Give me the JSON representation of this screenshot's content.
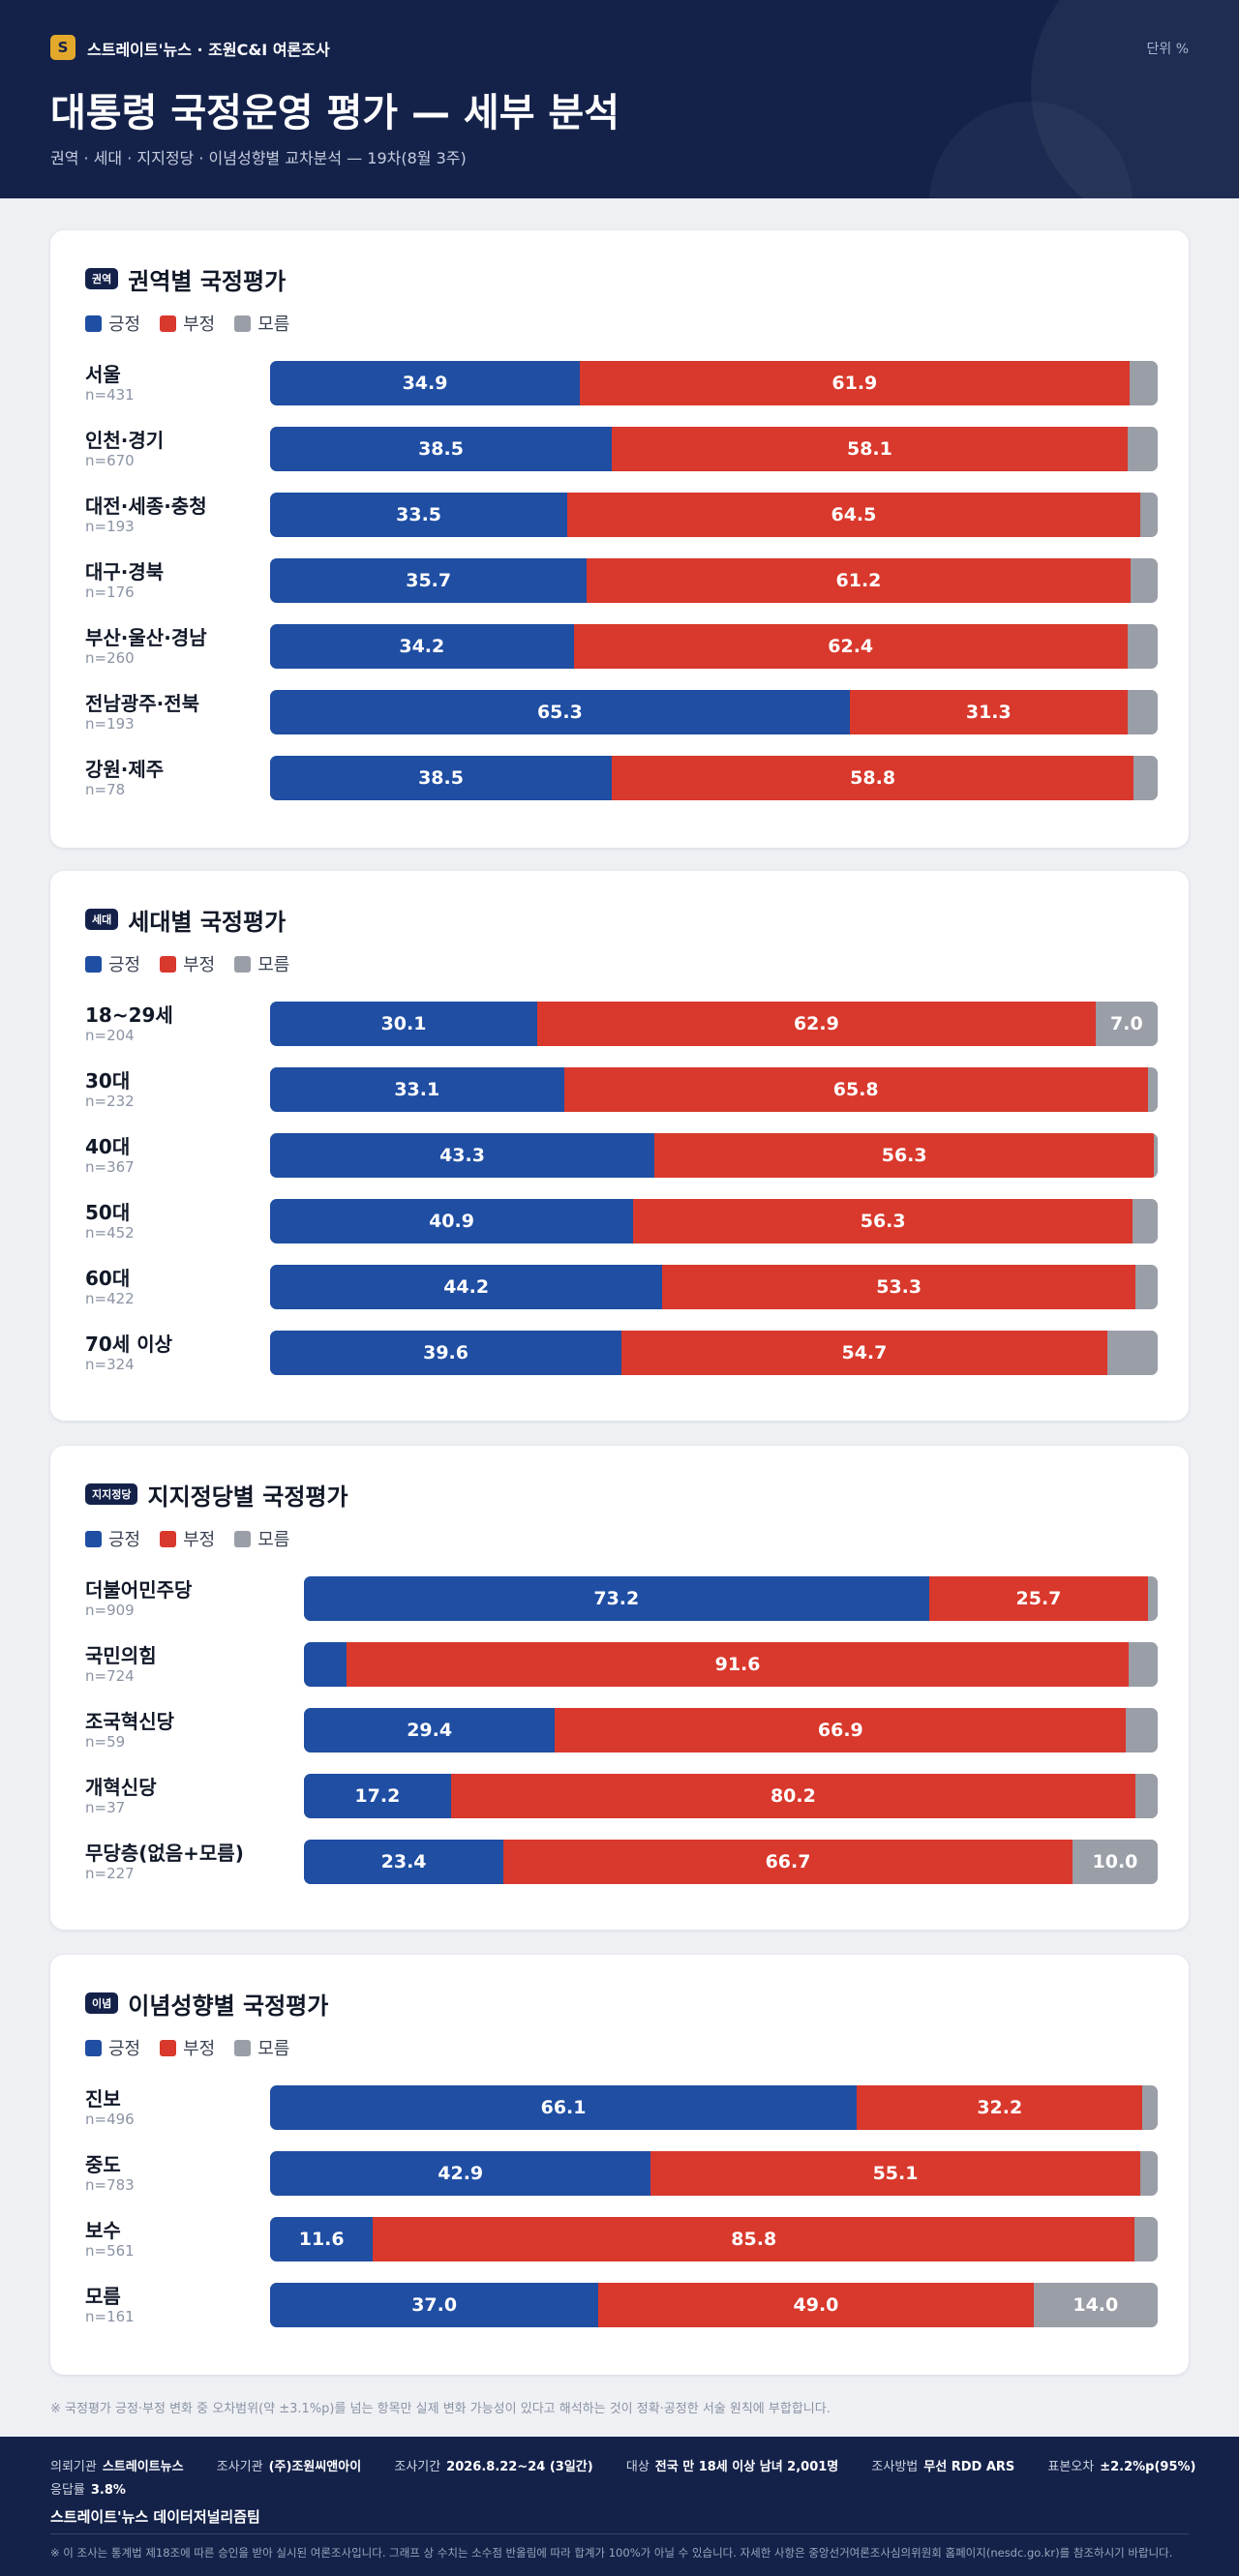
{
  "header": {
    "logo_letter": "S",
    "brand": "스트레이트'뉴스 · 조원C&I 여론조사",
    "unit": "단위 %",
    "title": "대통령 국정운영 평가 — 세부 분석",
    "subtitle": "권역 · 세대 · 지지정당 · 이념성향별 교차분석 — 19차(8월 3주)"
  },
  "legend": {
    "positive": "긍정",
    "negative": "부정",
    "unknown": "모름"
  },
  "colors": {
    "positive": "#1f4ea3",
    "negative": "#d9382c",
    "unknown": "#9a9ea7",
    "navy": "#14224a"
  },
  "chart_data": [
    {
      "type": "bar",
      "orientation": "horizontal-stacked",
      "tag": "권역",
      "title": "권역별 국정평가",
      "categories": [
        "서울",
        "인천·경기",
        "대전·세종·충청",
        "대구·경북",
        "부산·울산·경남",
        "전남광주·전북",
        "강원·제주"
      ],
      "n": [
        "n=431",
        "n=670",
        "n=193",
        "n=176",
        "n=260",
        "n=193",
        "n=78"
      ],
      "series": [
        {
          "name": "긍정",
          "values": [
            34.9,
            38.5,
            33.5,
            35.7,
            34.2,
            65.3,
            38.5
          ]
        },
        {
          "name": "부정",
          "values": [
            61.9,
            58.1,
            64.5,
            61.2,
            62.4,
            31.3,
            58.8
          ]
        },
        {
          "name": "모름",
          "values": [
            3.2,
            3.4,
            2.0,
            3.1,
            3.4,
            3.4,
            2.7
          ]
        }
      ],
      "labeled": [
        [
          true,
          true,
          false
        ],
        [
          true,
          true,
          false
        ],
        [
          true,
          true,
          false
        ],
        [
          true,
          true,
          false
        ],
        [
          true,
          true,
          false
        ],
        [
          true,
          true,
          false
        ],
        [
          true,
          true,
          false
        ]
      ],
      "xlim": [
        0,
        100
      ]
    },
    {
      "type": "bar",
      "orientation": "horizontal-stacked",
      "tag": "세대",
      "title": "세대별 국정평가",
      "categories": [
        "18~29세",
        "30대",
        "40대",
        "50대",
        "60대",
        "70세 이상"
      ],
      "n": [
        "n=204",
        "n=232",
        "n=367",
        "n=452",
        "n=422",
        "n=324"
      ],
      "series": [
        {
          "name": "긍정",
          "values": [
            30.1,
            33.1,
            43.3,
            40.9,
            44.2,
            39.6
          ]
        },
        {
          "name": "부정",
          "values": [
            62.9,
            65.8,
            56.3,
            56.3,
            53.3,
            54.7
          ]
        },
        {
          "name": "모름",
          "values": [
            7.0,
            1.1,
            0.4,
            2.8,
            2.5,
            5.7
          ]
        }
      ],
      "labeled": [
        [
          true,
          true,
          true
        ],
        [
          true,
          true,
          false
        ],
        [
          true,
          true,
          false
        ],
        [
          true,
          true,
          false
        ],
        [
          true,
          true,
          false
        ],
        [
          true,
          true,
          false
        ]
      ],
      "xlim": [
        0,
        100
      ]
    },
    {
      "type": "bar",
      "orientation": "horizontal-stacked",
      "tag": "지지정당",
      "title": "지지정당별 국정평가",
      "categories": [
        "더불어민주당",
        "국민의힘",
        "조국혁신당",
        "개혁신당",
        "무당층(없음+모름)"
      ],
      "n": [
        "n=909",
        "n=724",
        "n=59",
        "n=37",
        "n=227"
      ],
      "series": [
        {
          "name": "긍정",
          "values": [
            73.2,
            5.0,
            29.4,
            17.2,
            23.4
          ]
        },
        {
          "name": "부정",
          "values": [
            25.7,
            91.6,
            66.9,
            80.2,
            66.7
          ]
        },
        {
          "name": "모름",
          "values": [
            1.1,
            3.4,
            3.7,
            2.6,
            10.0
          ]
        }
      ],
      "labeled": [
        [
          true,
          true,
          false
        ],
        [
          false,
          true,
          false
        ],
        [
          true,
          true,
          false
        ],
        [
          true,
          true,
          false
        ],
        [
          true,
          true,
          true
        ]
      ],
      "xlim": [
        0,
        100
      ]
    },
    {
      "type": "bar",
      "orientation": "horizontal-stacked",
      "tag": "이념",
      "title": "이념성향별 국정평가",
      "categories": [
        "진보",
        "중도",
        "보수",
        "모름"
      ],
      "n": [
        "n=496",
        "n=783",
        "n=561",
        "n=161"
      ],
      "series": [
        {
          "name": "긍정",
          "values": [
            66.1,
            42.9,
            11.6,
            37.0
          ]
        },
        {
          "name": "부정",
          "values": [
            32.2,
            55.1,
            85.8,
            49.0
          ]
        },
        {
          "name": "모름",
          "values": [
            1.7,
            2.0,
            2.6,
            14.0
          ]
        }
      ],
      "labeled": [
        [
          true,
          true,
          false
        ],
        [
          true,
          true,
          false
        ],
        [
          true,
          true,
          false
        ],
        [
          true,
          true,
          true
        ]
      ],
      "xlim": [
        0,
        100
      ]
    }
  ],
  "note": "※ 국정평가 긍정·부정 변화 중 오차범위(약 ±3.1%p)를 넘는 항목만 실제 변화 가능성이 있다고 해석하는 것이 정확·공정한 서술 원칙에 부합합니다.",
  "footer": {
    "client_label": "의뢰기관",
    "client": "스트레이트뉴스",
    "agency_label": "조사기관",
    "agency": "(주)조원씨앤아이",
    "period_label": "조사기간",
    "period": "2026.8.22~24 (3일간)",
    "target_label": "대상",
    "target": "전국 만 18세 이상 남녀 2,001명",
    "method_label": "조사방법",
    "method": "무선 RDD ARS",
    "error_label": "표본오차",
    "error": "±2.2%p(95%)",
    "response_label": "응답률",
    "response": "3.8%",
    "brand": "스트레이트'뉴스 데이터저널리즘팀",
    "disclaimer": "※ 이 조사는 통계법 제18조에 따른 승인을 받아 실시된 여론조사입니다. 그래프 상 수치는 소수점 반올림에 따라 합계가 100%가 아닐 수 있습니다. 자세한 사항은 중앙선거여론조사심의위원회 홈페이지(nesdc.go.kr)를 참조하시기 바랍니다."
  }
}
